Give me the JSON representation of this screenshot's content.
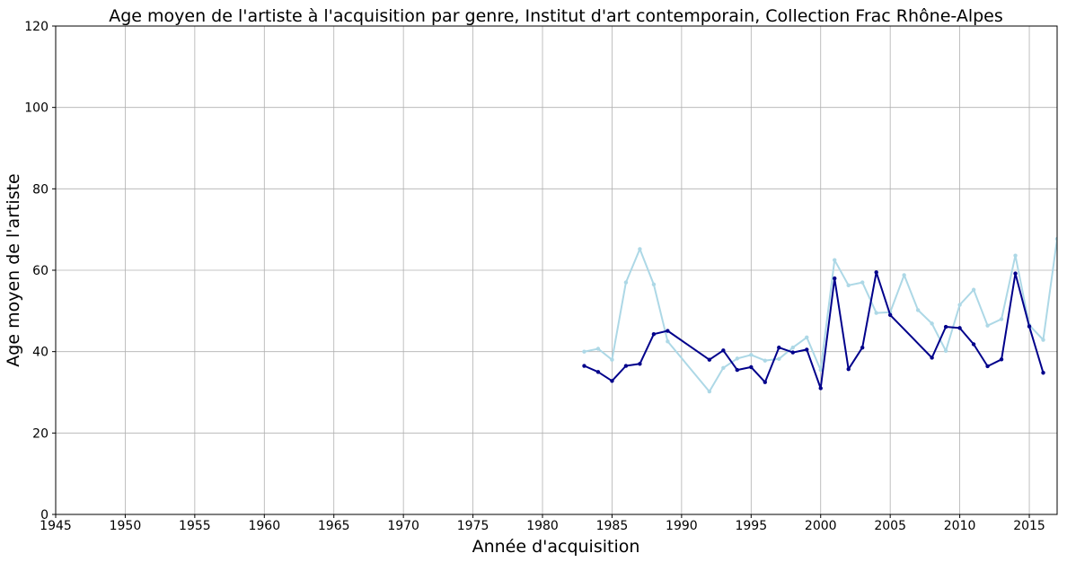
{
  "chart_data": {
    "type": "line",
    "title": "Age moyen de l'artiste à l'acquisition par genre, Institut d'art contemporain, Collection Frac Rhône-Alpes",
    "xlabel": "Année d'acquisition",
    "ylabel": "Age moyen de l'artiste",
    "xlim": [
      1945,
      2017
    ],
    "ylim": [
      0,
      120
    ],
    "xticks": [
      1945,
      1950,
      1955,
      1960,
      1965,
      1970,
      1975,
      1980,
      1985,
      1990,
      1995,
      2000,
      2005,
      2010,
      2015
    ],
    "yticks": [
      0,
      20,
      40,
      60,
      80,
      100,
      120
    ],
    "grid": true,
    "series": [
      {
        "color": "#add8e6",
        "x": [
          1983,
          1984,
          1985,
          1986,
          1987,
          1988,
          1989,
          1992,
          1993,
          1994,
          1995,
          1996,
          1997,
          1998,
          1999,
          2000,
          2001,
          2002,
          2003,
          2004,
          2005,
          2006,
          2007,
          2008,
          2009,
          2010,
          2011,
          2012,
          2013,
          2014,
          2015,
          2016,
          2017
        ],
        "y": [
          40,
          40.7,
          38,
          57,
          65.2,
          56.5,
          42.5,
          30.2,
          36,
          38.3,
          39.2,
          37.8,
          38.2,
          41,
          43.5,
          35.5,
          62.5,
          56.3,
          57,
          49.5,
          49.7,
          58.8,
          50.2,
          46.9,
          40.2,
          51.5,
          55.2,
          46.4,
          48,
          63.6,
          46.5,
          42.9,
          67.7
        ]
      },
      {
        "color": "#00008b",
        "x": [
          1983,
          1984,
          1985,
          1986,
          1987,
          1988,
          1989,
          1992,
          1993,
          1994,
          1995,
          1996,
          1997,
          1998,
          1999,
          2000,
          2001,
          2002,
          2003,
          2004,
          2005,
          2008,
          2009,
          2010,
          2011,
          2012,
          2013,
          2014,
          2015,
          2016
        ],
        "y": [
          36.5,
          35,
          32.8,
          36.5,
          37,
          44.3,
          45.1,
          38,
          40.3,
          35.5,
          36.2,
          32.5,
          41,
          39.8,
          40.5,
          31,
          58,
          35.7,
          41,
          59.5,
          49,
          38.5,
          46.1,
          45.8,
          41.8,
          36.4,
          38.1,
          59.2,
          46.2,
          34.8
        ]
      }
    ]
  }
}
